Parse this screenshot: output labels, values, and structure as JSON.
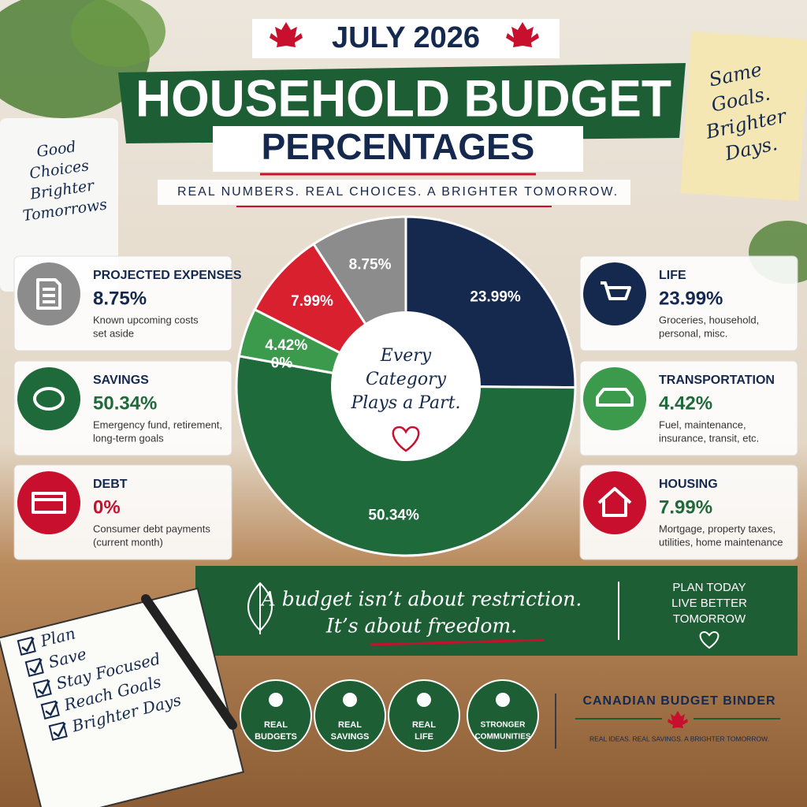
{
  "header": {
    "month": "JULY 2026",
    "title": "HOUSEHOLD BUDGET",
    "subtitle": "PERCENTAGES",
    "tagline": "REAL NUMBERS. REAL CHOICES. A BRIGHTER TOMORROW."
  },
  "pot_note": [
    "Good",
    "Choices",
    "Brighter",
    "Tomorrows"
  ],
  "sticky_note": [
    "Same",
    "Goals.",
    "Brighter",
    "Days."
  ],
  "chart_data": {
    "type": "pie",
    "donut": true,
    "center_text": [
      "Every",
      "Category",
      "Plays a Part."
    ],
    "categories": [
      "LIFE",
      "SAVINGS",
      "DEBT",
      "TRANSPORTATION",
      "HOUSING",
      "PROJECTED EXPENSES"
    ],
    "values": [
      23.99,
      50.34,
      0,
      4.42,
      7.99,
      8.75
    ],
    "value_labels": [
      "23.99%",
      "50.34%",
      "0%",
      "4.42%",
      "7.99%",
      "8.75%"
    ],
    "colors": [
      "#14294d",
      "#1f6a3a",
      "#c8102e",
      "#3b9a4b",
      "#d8202f",
      "#8c8c8c"
    ],
    "descriptions": [
      [
        "Groceries, household,",
        "personal, misc."
      ],
      [
        "Emergency fund, retirement,",
        "long-term goals"
      ],
      [
        "Consumer debt payments",
        "(current month)"
      ],
      [
        "Fuel, maintenance,",
        "insurance, transit, etc."
      ],
      [
        "Mortgage, property taxes,",
        "utilities, home maintenance"
      ],
      [
        "Known upcoming costs",
        "set aside"
      ]
    ]
  },
  "quote": {
    "lines": [
      "A budget isn’t about restriction.",
      "It’s about freedom."
    ],
    "side": [
      "PLAN TODAY",
      "LIVE BETTER",
      "TOMORROW"
    ]
  },
  "badges": [
    [
      "REAL",
      "BUDGETS"
    ],
    [
      "REAL",
      "SAVINGS"
    ],
    [
      "REAL",
      "LIFE"
    ],
    [
      "STRONGER",
      "COMMUNITIES"
    ]
  ],
  "brand": {
    "name": "CANADIAN BUDGET BINDER",
    "tagline": "REAL IDEAS. REAL SAVINGS. A BRIGHTER TOMORROW."
  },
  "checklist": [
    "Plan",
    "Save",
    "Stay Focused",
    "Reach Goals",
    "Brighter Days"
  ]
}
